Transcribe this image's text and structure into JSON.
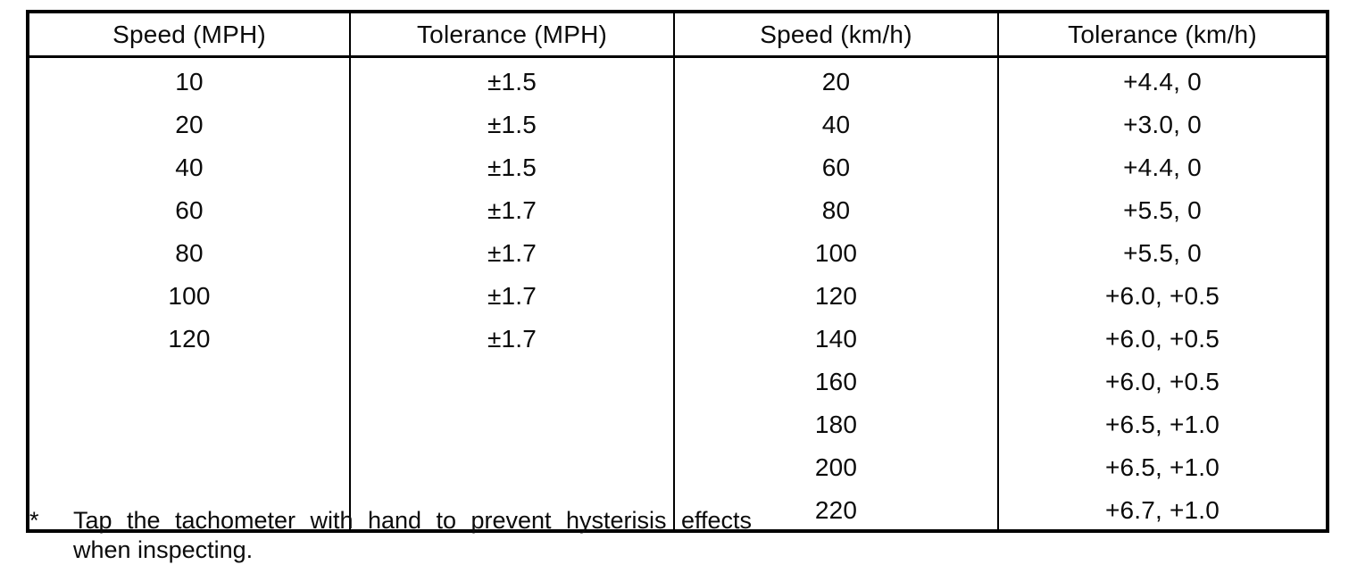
{
  "table": {
    "columns": [
      {
        "label": "Speed (MPH)"
      },
      {
        "label": "Tolerance (MPH)"
      },
      {
        "label": "Speed (km/h)"
      },
      {
        "label": "Tolerance (km/h)"
      }
    ],
    "rows": [
      [
        "10",
        "±1.5",
        "20",
        "+4.4, 0"
      ],
      [
        "20",
        "±1.5",
        "40",
        "+3.0, 0"
      ],
      [
        "40",
        "±1.5",
        "60",
        "+4.4, 0"
      ],
      [
        "60",
        "±1.7",
        "80",
        "+5.5, 0"
      ],
      [
        "80",
        "±1.7",
        "100",
        "+5.5, 0"
      ],
      [
        "100",
        "±1.7",
        "120",
        "+6.0, +0.5"
      ],
      [
        "120",
        "±1.7",
        "140",
        "+6.0, +0.5"
      ],
      [
        "",
        "",
        "160",
        "+6.0, +0.5"
      ],
      [
        "",
        "",
        "180",
        "+6.5, +1.0"
      ],
      [
        "",
        "",
        "200",
        "+6.5, +1.0"
      ],
      [
        "",
        "",
        "220",
        "+6.7, +1.0"
      ]
    ]
  },
  "footnote": {
    "marker": "*",
    "lines": [
      "Tap the tachometer with hand to prevent hysterisis effects",
      "when inspecting."
    ]
  },
  "colors": {
    "background": "#ffffff",
    "ink": "#0b0b0b",
    "border": "#000000"
  }
}
